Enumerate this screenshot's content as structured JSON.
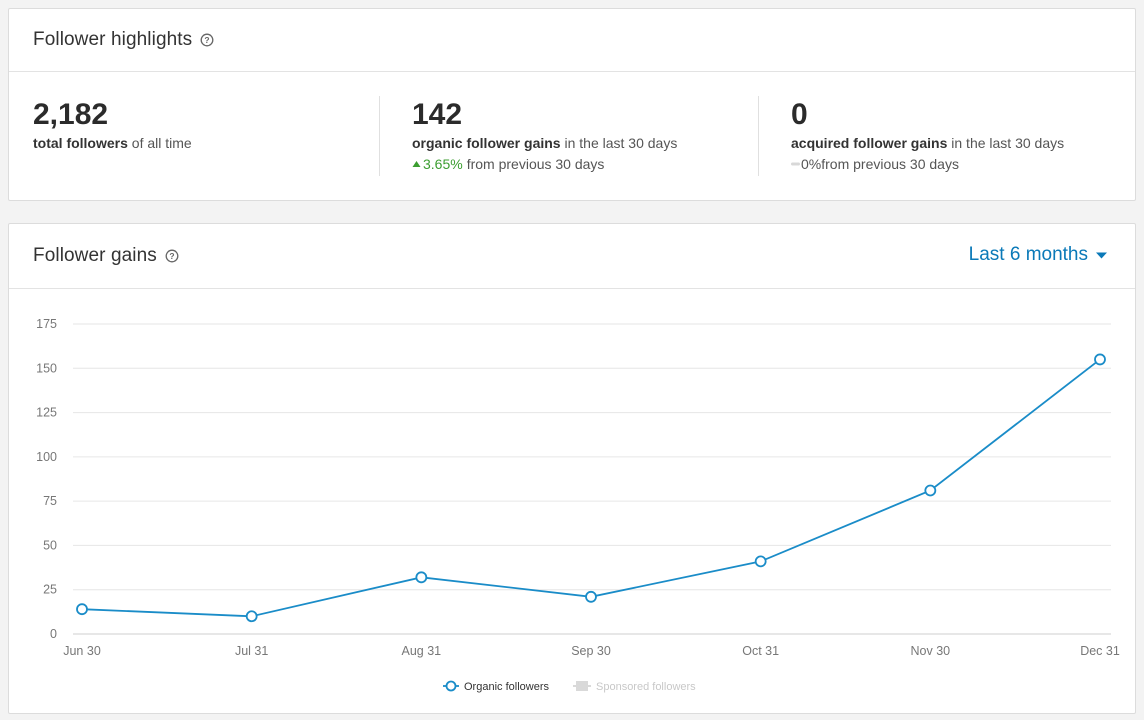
{
  "highlights": {
    "title": "Follower highlights",
    "stats": [
      {
        "value": "2,182",
        "label_bold": "total followers",
        "label_rest": " of all time"
      },
      {
        "value": "142",
        "label_bold": "organic follower gains",
        "label_rest": " in the last 30 days",
        "change_value": "3.65%",
        "change_text": "from previous 30 days",
        "change_dir": "up"
      },
      {
        "value": "0",
        "label_bold": "acquired follower gains",
        "label_rest": " in the last 30 days",
        "change_value": "0%",
        "change_text": " from previous 30 days",
        "change_dir": "neutral"
      }
    ]
  },
  "gains": {
    "title": "Follower gains",
    "range_label": "Last 6 months"
  },
  "colors": {
    "accent": "#0a79b8",
    "line": "#1a8cc8",
    "positive": "#3c9e31",
    "muted": "#cccccc"
  },
  "chart_data": {
    "type": "line",
    "categories": [
      "Jun 30",
      "Jul 31",
      "Aug 31",
      "Sep 30",
      "Oct 31",
      "Nov 30",
      "Dec 31"
    ],
    "series": [
      {
        "name": "Organic followers",
        "values": [
          14,
          10,
          32,
          21,
          41,
          81,
          155
        ]
      }
    ],
    "legend": [
      "Organic followers",
      "Sponsored followers"
    ],
    "ylim": [
      0,
      175
    ],
    "yticks": [
      0,
      25,
      50,
      75,
      100,
      125,
      150,
      175
    ],
    "grid": true,
    "legend_position": "bottom-center"
  }
}
